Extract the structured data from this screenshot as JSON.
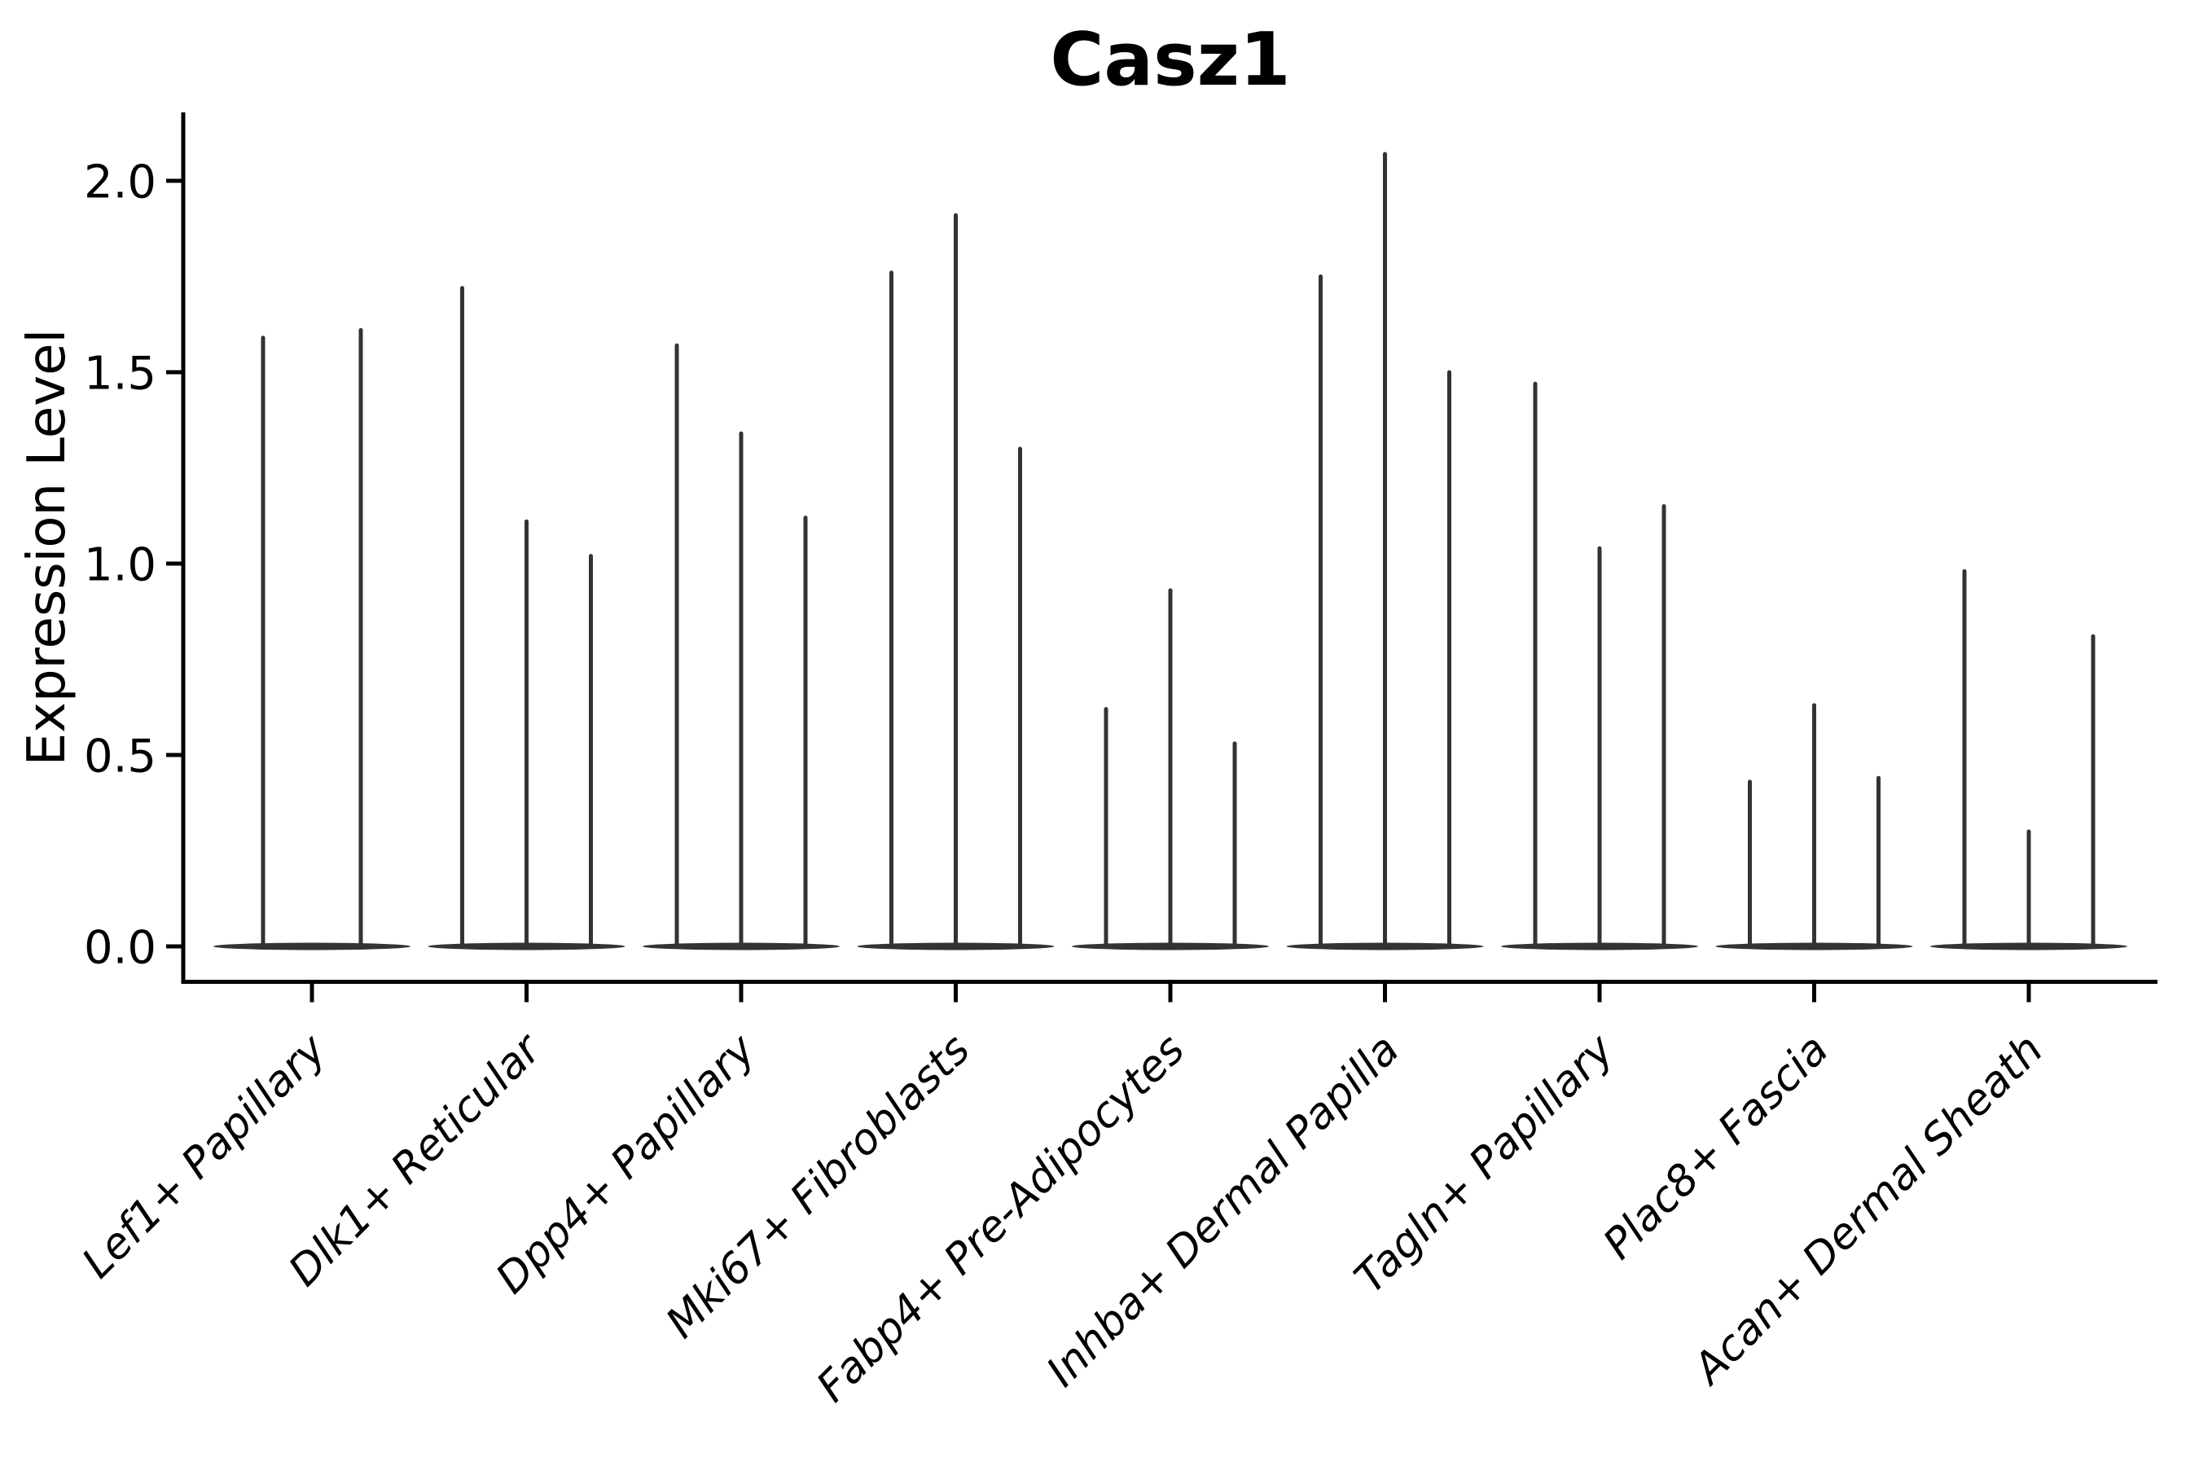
{
  "page": {
    "background_color": "#ffffff",
    "text_color": "#000000"
  },
  "chart_data": {
    "type": "violin",
    "title": "Casz1",
    "ylabel": "Expression Level",
    "xlabel": "",
    "grid": false,
    "legend": null,
    "ylim": [
      -0.09,
      2.17
    ],
    "yticks": [
      0.0,
      0.5,
      1.0,
      1.5,
      2.0
    ],
    "ytick_labels": [
      "0.0",
      "0.5",
      "1.0",
      "1.5",
      "2.0"
    ],
    "violin_color": "#333333",
    "axis_color": "#000000",
    "categories": [
      "Lef1+ Papillary",
      "Dlk1+ Reticular",
      "Dpp4+ Papillary",
      "Mki67+ Fibroblasts",
      "Fabp4+ Pre-Adipocytes",
      "Inhba+ Dermal Papilla",
      "Tagln+ Papillary",
      "Plac8+ Fascia",
      "Acan+ Dermal Sheath"
    ],
    "series": [
      {
        "category": "Lef1+ Papillary",
        "violin_maxima": [
          1.59,
          1.61
        ]
      },
      {
        "category": "Dlk1+ Reticular",
        "violin_maxima": [
          1.72,
          1.11,
          1.02
        ]
      },
      {
        "category": "Dpp4+ Papillary",
        "violin_maxima": [
          1.57,
          1.34,
          1.12
        ]
      },
      {
        "category": "Mki67+ Fibroblasts",
        "violin_maxima": [
          1.76,
          1.91,
          1.3
        ]
      },
      {
        "category": "Fabp4+ Pre-Adipocytes",
        "violin_maxima": [
          0.62,
          0.93,
          0.53
        ]
      },
      {
        "category": "Inhba+ Dermal Papilla",
        "violin_maxima": [
          1.75,
          2.07,
          1.5
        ]
      },
      {
        "category": "Tagln+ Papillary",
        "violin_maxima": [
          1.47,
          1.04,
          1.15
        ]
      },
      {
        "category": "Plac8+ Fascia",
        "violin_maxima": [
          0.43,
          0.63,
          0.44
        ]
      },
      {
        "category": "Acan+ Dermal Sheath",
        "violin_maxima": [
          0.98,
          0.3,
          0.81
        ]
      }
    ]
  }
}
